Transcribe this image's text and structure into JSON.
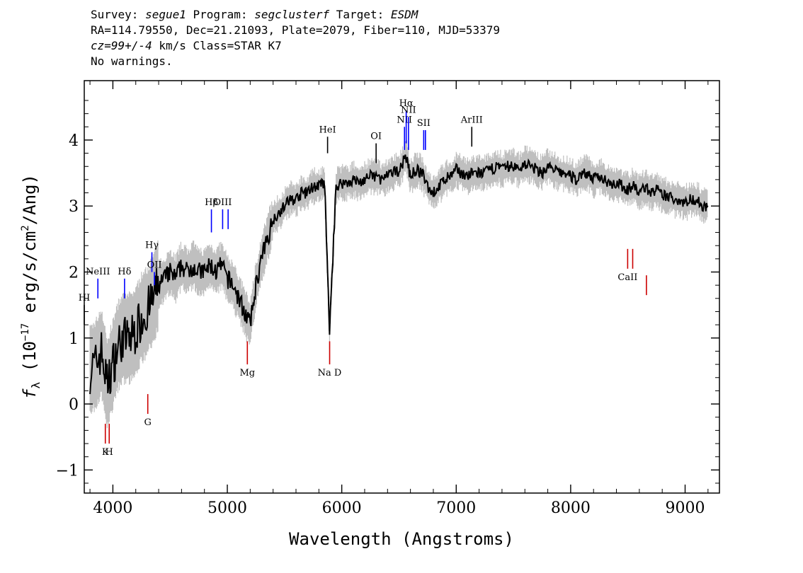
{
  "header": {
    "line1": {
      "survey_label": "Survey: ",
      "survey": "segue1",
      "program_label": " Program: ",
      "program": "segclusterf",
      "target_label": " Target: ",
      "target": "ESDM"
    },
    "line2": "RA=114.79550, Dec=21.21093, Plate=2079, Fiber=110, MJD=53379",
    "line3": {
      "cz": "cz=99+/-4",
      "rest": " km/s Class=STAR K7"
    },
    "line4": "No warnings."
  },
  "colors": {
    "spectrum": "#000000",
    "error_band": "#bfbfbf",
    "emission_line": "#0000ff",
    "absorption_line": "#cc0000",
    "sky_line": "#000000"
  },
  "chart_data": {
    "type": "line",
    "xlabel": "Wavelength (Angstroms)",
    "ylabel_prefix": "f",
    "ylabel_subscript": "λ",
    "ylabel_open": " (10",
    "ylabel_exp1": "−17",
    "ylabel_units": " erg/s/cm",
    "ylabel_exp2": "2",
    "ylabel_end": "/Ang)",
    "xlim": [
      3750,
      9300
    ],
    "ylim": [
      -1.35,
      4.9
    ],
    "x_ticks": [
      "4000",
      "5000",
      "6000",
      "7000",
      "8000",
      "9000"
    ],
    "x_tick_values": [
      4000,
      5000,
      6000,
      7000,
      8000,
      9000
    ],
    "y_ticks": [
      "−1",
      "0",
      "1",
      "2",
      "3",
      "4"
    ],
    "y_tick_values": [
      -1,
      0,
      1,
      2,
      3,
      4
    ],
    "spectrum_x": [
      3800,
      3850,
      3900,
      3950,
      4000,
      4050,
      4100,
      4150,
      4200,
      4250,
      4300,
      4350,
      4400,
      4450,
      4500,
      4550,
      4600,
      4650,
      4700,
      4750,
      4800,
      4850,
      4900,
      4950,
      5000,
      5050,
      5100,
      5150,
      5200,
      5250,
      5300,
      5350,
      5400,
      5450,
      5500,
      5550,
      5600,
      5650,
      5700,
      5750,
      5800,
      5850,
      5893,
      5950,
      6000,
      6050,
      6100,
      6150,
      6200,
      6250,
      6300,
      6350,
      6400,
      6450,
      6500,
      6563,
      6600,
      6650,
      6700,
      6750,
      6800,
      6850,
      6900,
      6950,
      7000,
      7050,
      7100,
      7150,
      7200,
      7250,
      7300,
      7350,
      7400,
      7450,
      7500,
      7550,
      7600,
      7650,
      7700,
      7750,
      7800,
      7850,
      7900,
      7950,
      8000,
      8050,
      8100,
      8150,
      8200,
      8250,
      8300,
      8350,
      8400,
      8450,
      8500,
      8550,
      8600,
      8650,
      8700,
      8750,
      8800,
      8850,
      8900,
      8950,
      9000,
      9050,
      9100,
      9150,
      9200
    ],
    "spectrum_y": [
      0.5,
      0.6,
      0.8,
      0.3,
      0.6,
      0.9,
      1.0,
      1.0,
      1.1,
      1.3,
      1.4,
      1.6,
      1.8,
      1.9,
      2.0,
      1.9,
      2.1,
      2.0,
      2.1,
      2.0,
      2.0,
      2.1,
      2.0,
      2.1,
      1.9,
      1.8,
      1.6,
      1.4,
      1.2,
      1.8,
      2.2,
      2.5,
      2.8,
      2.9,
      3.0,
      3.1,
      3.1,
      3.2,
      3.2,
      3.3,
      3.3,
      3.35,
      1.1,
      3.3,
      3.35,
      3.35,
      3.4,
      3.35,
      3.4,
      3.45,
      3.45,
      3.4,
      3.45,
      3.5,
      3.55,
      3.75,
      3.45,
      3.55,
      3.5,
      3.3,
      3.2,
      3.3,
      3.4,
      3.45,
      3.55,
      3.5,
      3.45,
      3.5,
      3.5,
      3.5,
      3.55,
      3.6,
      3.55,
      3.6,
      3.6,
      3.55,
      3.65,
      3.6,
      3.55,
      3.5,
      3.6,
      3.55,
      3.5,
      3.5,
      3.45,
      3.4,
      3.5,
      3.5,
      3.4,
      3.45,
      3.4,
      3.35,
      3.35,
      3.3,
      3.25,
      3.3,
      3.2,
      3.3,
      3.2,
      3.25,
      3.15,
      3.15,
      3.1,
      3.1,
      3.05,
      3.1,
      3.1,
      3.0,
      3.0
    ],
    "emission_lines": [
      {
        "label": "NeIII",
        "x": 3869,
        "y0": 1.6,
        "y1": 1.9
      },
      {
        "label": "Hδ",
        "x": 4102,
        "y0": 1.6,
        "y1": 1.9
      },
      {
        "label": "Hγ",
        "x": 4341,
        "y0": 2.0,
        "y1": 2.3
      },
      {
        "label": "OII",
        "x": 4363,
        "y0": 1.8,
        "y1": 2.0
      },
      {
        "label": "Hβ",
        "x": 4861,
        "y0": 2.6,
        "y1": 2.95
      },
      {
        "label": "OIII",
        "x": 4959,
        "y0": 2.65,
        "y1": 2.95
      },
      {
        "label": "",
        "x": 5007,
        "y0": 2.65,
        "y1": 2.95
      },
      {
        "label": "NII",
        "x": 6548,
        "y0": 3.85,
        "y1": 4.2
      },
      {
        "label": "Hα",
        "x": 6563,
        "y0": 3.95,
        "y1": 4.45
      },
      {
        "label": "NII",
        "x": 6583,
        "y0": 3.85,
        "y1": 4.35
      },
      {
        "label": "SII",
        "x": 6716,
        "y0": 3.85,
        "y1": 4.15
      },
      {
        "label": "",
        "x": 6731,
        "y0": 3.85,
        "y1": 4.15
      }
    ],
    "sky_lines": [
      {
        "label": "HeI",
        "x": 5876,
        "y0": 3.8,
        "y1": 4.05
      },
      {
        "label": "OI",
        "x": 6300,
        "y0": 3.65,
        "y1": 3.95
      },
      {
        "label": "ArIII",
        "x": 7136,
        "y0": 3.9,
        "y1": 4.2
      },
      {
        "label": "HI",
        "x": 3750,
        "y0": 1.2,
        "y1": 1.5
      }
    ],
    "absorption_lines": [
      {
        "label": "K",
        "x": 3934,
        "y0": -0.6,
        "y1": -0.3
      },
      {
        "label": "H",
        "x": 3968,
        "y0": -0.6,
        "y1": -0.3
      },
      {
        "label": "G",
        "x": 4305,
        "y0": -0.15,
        "y1": 0.15
      },
      {
        "label": "Mg",
        "x": 5175,
        "y0": 0.6,
        "y1": 0.95
      },
      {
        "label": "Na D",
        "x": 5894,
        "y0": 0.6,
        "y1": 0.95
      },
      {
        "label": "CaII",
        "x": 8498,
        "y0": 2.05,
        "y1": 2.35
      },
      {
        "label": "",
        "x": 8542,
        "y0": 2.05,
        "y1": 2.35
      },
      {
        "label": "",
        "x": 8662,
        "y0": 1.65,
        "y1": 1.95
      }
    ]
  }
}
